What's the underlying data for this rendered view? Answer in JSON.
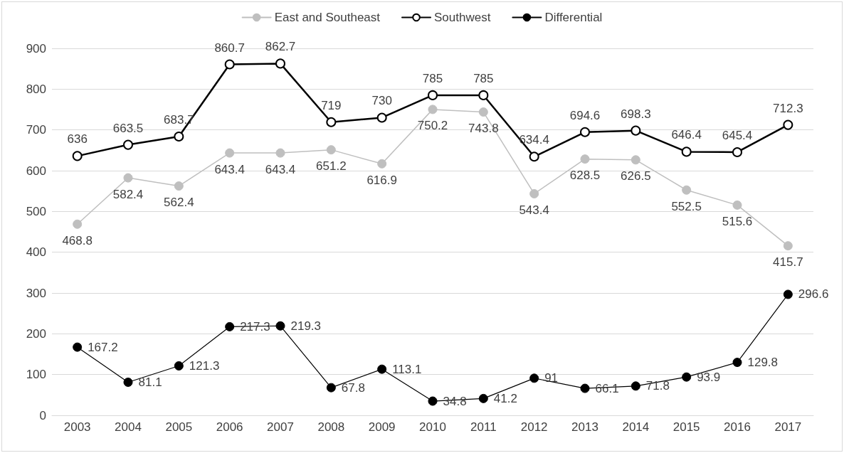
{
  "chart_data": {
    "type": "line",
    "categories": [
      "2003",
      "2004",
      "2005",
      "2006",
      "2007",
      "2008",
      "2009",
      "2010",
      "2011",
      "2012",
      "2013",
      "2014",
      "2015",
      "2016",
      "2017"
    ],
    "series": [
      {
        "name": "East and Southeast",
        "color": "#bfbfbf",
        "values": [
          468.8,
          582.4,
          562.4,
          643.4,
          643.4,
          651.2,
          616.9,
          750.2,
          743.8,
          543.4,
          628.5,
          626.5,
          552.5,
          515.6,
          415.7
        ]
      },
      {
        "name": "Southwest",
        "color": "#000000",
        "values": [
          636,
          663.5,
          683.7,
          860.7,
          862.7,
          719,
          730,
          785,
          785,
          634.4,
          694.6,
          698.3,
          646.4,
          645.4,
          712.3
        ]
      },
      {
        "name": "Differential",
        "color": "#000000",
        "values": [
          167.2,
          81.1,
          121.3,
          217.3,
          219.3,
          67.8,
          113.1,
          34.8,
          41.2,
          91,
          66.1,
          71.8,
          93.9,
          129.8,
          296.6
        ]
      }
    ],
    "ylim": [
      0,
      900
    ],
    "yticks": [
      0,
      100,
      200,
      300,
      400,
      500,
      600,
      700,
      800,
      900
    ],
    "grid": "y",
    "legend": "top",
    "marker": "circle",
    "line_style": "solid",
    "data_labels": true
  }
}
